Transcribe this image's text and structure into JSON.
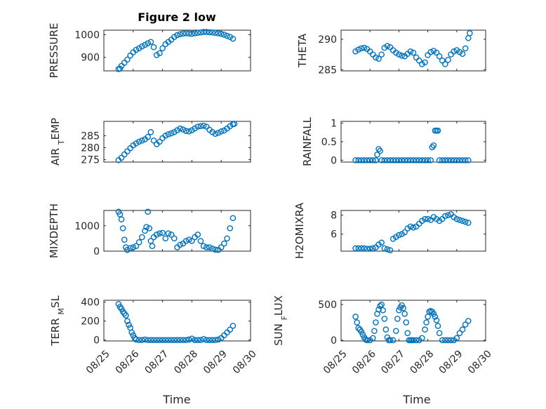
{
  "figure": {
    "title": "Figure 2 low",
    "marker_color": "#0072BD",
    "grid": true,
    "x_time_label": "Time",
    "x_ticks": [
      "08/25",
      "08/26",
      "08/27",
      "08/28",
      "08/29",
      "08/30"
    ]
  },
  "chart_data": [
    {
      "id": "pressure",
      "type": "scatter",
      "ylabel": "PRESSURE",
      "xlim": [
        25,
        30
      ],
      "ylim": [
        840,
        1020
      ],
      "yticks": [
        900,
        1000
      ],
      "x": [
        25.5,
        25.55,
        25.6,
        25.7,
        25.8,
        25.9,
        26.0,
        26.1,
        26.2,
        26.3,
        26.4,
        26.5,
        26.6,
        26.7,
        26.8,
        26.9,
        27.0,
        27.1,
        27.2,
        27.3,
        27.4,
        27.5,
        27.6,
        27.7,
        27.8,
        27.9,
        28.0,
        28.1,
        28.2,
        28.3,
        28.4,
        28.5,
        28.6,
        28.7,
        28.8,
        28.9,
        29.0,
        29.1,
        29.2,
        29.3,
        29.4
      ],
      "values": [
        848,
        850,
        862,
        876,
        890,
        908,
        922,
        933,
        940,
        948,
        955,
        962,
        968,
        945,
        910,
        918,
        940,
        958,
        968,
        978,
        990,
        998,
        1002,
        1005,
        1006,
        1005,
        1004,
        1006,
        1008,
        1010,
        1012,
        1012,
        1011,
        1010,
        1008,
        1006,
        1004,
        1000,
        995,
        990,
        982
      ]
    },
    {
      "id": "theta",
      "type": "scatter",
      "ylabel": "THETA",
      "xlim": [
        25,
        30
      ],
      "ylim": [
        284.8,
        291.5
      ],
      "yticks": [
        285,
        290
      ],
      "x": [
        25.5,
        25.6,
        25.7,
        25.8,
        25.9,
        26.0,
        26.1,
        26.2,
        26.3,
        26.4,
        26.5,
        26.6,
        26.7,
        26.8,
        26.9,
        27.0,
        27.1,
        27.2,
        27.3,
        27.4,
        27.5,
        27.6,
        27.7,
        27.8,
        27.9,
        28.0,
        28.1,
        28.2,
        28.3,
        28.4,
        28.5,
        28.6,
        28.7,
        28.8,
        28.9,
        29.0,
        29.1,
        29.2,
        29.3,
        29.4,
        29.45
      ],
      "values": [
        288.0,
        288.3,
        288.5,
        288.6,
        288.4,
        288.0,
        287.5,
        287.0,
        286.8,
        287.5,
        288.6,
        288.9,
        288.7,
        288.2,
        287.8,
        287.5,
        287.3,
        287.2,
        287.6,
        288.0,
        287.8,
        287.0,
        286.5,
        285.9,
        286.2,
        287.4,
        287.9,
        288.1,
        287.8,
        287.2,
        286.5,
        285.9,
        286.6,
        287.5,
        288.0,
        288.2,
        287.9,
        287.6,
        288.5,
        290.2,
        291.0
      ]
    },
    {
      "id": "air-temp",
      "type": "scatter",
      "ylabel": "AIR_TEMP",
      "xlim": [
        25,
        30
      ],
      "ylim": [
        274,
        291
      ],
      "yticks": [
        275,
        280,
        285
      ],
      "x": [
        25.5,
        25.6,
        25.7,
        25.8,
        25.9,
        26.0,
        26.1,
        26.2,
        26.3,
        26.4,
        26.5,
        26.6,
        26.7,
        26.8,
        26.9,
        27.0,
        27.1,
        27.2,
        27.3,
        27.4,
        27.5,
        27.6,
        27.7,
        27.8,
        27.9,
        28.0,
        28.1,
        28.2,
        28.3,
        28.4,
        28.5,
        28.6,
        28.7,
        28.8,
        28.9,
        29.0,
        29.1,
        29.2,
        29.3,
        29.4,
        29.45
      ],
      "values": [
        274.8,
        275.8,
        277.2,
        278.5,
        279.8,
        281.0,
        281.8,
        282.5,
        283.0,
        283.5,
        284.5,
        286.5,
        283.0,
        281.5,
        282.5,
        284.0,
        285.0,
        285.6,
        286.0,
        286.5,
        287.3,
        288.0,
        287.6,
        287.0,
        286.8,
        287.3,
        288.0,
        288.8,
        289.0,
        289.2,
        288.8,
        287.5,
        286.5,
        285.8,
        286.2,
        286.8,
        287.2,
        288.0,
        289.0,
        289.8,
        290.0
      ]
    },
    {
      "id": "rainfall",
      "type": "scatter",
      "ylabel": "RAINFALL",
      "xlim": [
        25,
        30
      ],
      "ylim": [
        -0.05,
        1.05
      ],
      "yticks": [
        0,
        0.5,
        1
      ],
      "x": [
        25.5,
        25.6,
        25.7,
        25.8,
        25.9,
        26.0,
        26.1,
        26.2,
        26.25,
        26.3,
        26.35,
        26.4,
        26.5,
        26.6,
        26.7,
        26.8,
        26.9,
        27.0,
        27.1,
        27.2,
        27.3,
        27.4,
        27.5,
        27.6,
        27.7,
        27.8,
        27.9,
        28.0,
        28.1,
        28.15,
        28.2,
        28.25,
        28.3,
        28.35,
        28.4,
        28.5,
        28.6,
        28.7,
        28.8,
        28.9,
        29.0,
        29.1,
        29.2,
        29.3,
        29.4
      ],
      "values": [
        0,
        0,
        0,
        0,
        0,
        0,
        0,
        0,
        0.15,
        0.3,
        0.25,
        0,
        0,
        0,
        0,
        0,
        0,
        0,
        0,
        0,
        0,
        0,
        0,
        0,
        0,
        0,
        0,
        0,
        0,
        0.35,
        0.4,
        0.8,
        0.8,
        0.8,
        0,
        0,
        0,
        0,
        0,
        0,
        0,
        0,
        0,
        0,
        0
      ]
    },
    {
      "id": "mixdepth",
      "type": "scatter",
      "ylabel": "MIXDEPTH",
      "xlim": [
        25,
        30
      ],
      "ylim": [
        0,
        1600
      ],
      "yticks": [
        0,
        1000
      ],
      "x": [
        25.5,
        25.55,
        25.6,
        25.65,
        25.7,
        25.75,
        25.8,
        25.9,
        26.0,
        26.1,
        26.2,
        26.3,
        26.4,
        26.45,
        26.5,
        26.55,
        26.6,
        26.65,
        26.7,
        26.8,
        26.9,
        27.0,
        27.1,
        27.2,
        27.3,
        27.4,
        27.5,
        27.6,
        27.7,
        27.8,
        27.9,
        28.0,
        28.1,
        28.2,
        28.3,
        28.4,
        28.5,
        28.6,
        28.7,
        28.8,
        28.9,
        29.0,
        29.1,
        29.2,
        29.3,
        29.4
      ],
      "values": [
        1550,
        1450,
        1250,
        900,
        450,
        150,
        50,
        120,
        150,
        200,
        350,
        550,
        800,
        950,
        1550,
        900,
        400,
        200,
        550,
        650,
        700,
        720,
        500,
        700,
        650,
        500,
        150,
        250,
        300,
        400,
        450,
        400,
        550,
        650,
        400,
        200,
        150,
        150,
        100,
        60,
        50,
        150,
        300,
        500,
        900,
        1300
      ]
    },
    {
      "id": "h2omixra",
      "type": "scatter",
      "ylabel": "H2OMIXRA",
      "xlim": [
        25,
        30
      ],
      "ylim": [
        4.2,
        8.5
      ],
      "yticks": [
        6,
        8
      ],
      "x": [
        25.5,
        25.6,
        25.7,
        25.8,
        25.9,
        26.0,
        26.1,
        26.2,
        26.3,
        26.4,
        26.5,
        26.6,
        26.7,
        26.8,
        26.9,
        27.0,
        27.1,
        27.2,
        27.3,
        27.4,
        27.5,
        27.6,
        27.7,
        27.8,
        27.9,
        28.0,
        28.1,
        28.2,
        28.3,
        28.4,
        28.5,
        28.6,
        28.7,
        28.8,
        28.9,
        29.0,
        29.1,
        29.2,
        29.3,
        29.4
      ],
      "values": [
        4.5,
        4.5,
        4.5,
        4.5,
        4.45,
        4.45,
        4.5,
        4.6,
        4.9,
        5.1,
        4.5,
        4.4,
        4.3,
        5.5,
        5.7,
        5.9,
        6.0,
        6.2,
        6.6,
        6.8,
        6.7,
        6.8,
        7.1,
        7.4,
        7.6,
        7.6,
        7.5,
        7.8,
        7.6,
        7.4,
        7.6,
        7.9,
        8.0,
        8.1,
        7.8,
        7.6,
        7.5,
        7.4,
        7.3,
        7.2
      ]
    },
    {
      "id": "terr-msl",
      "type": "scatter",
      "ylabel": "TERR_MSL",
      "xlim": [
        25,
        30
      ],
      "ylim": [
        -10,
        420
      ],
      "yticks": [
        0,
        200,
        400
      ],
      "x": [
        25.5,
        25.55,
        25.6,
        25.65,
        25.7,
        25.75,
        25.8,
        25.85,
        25.9,
        25.95,
        26.0,
        26.05,
        26.1,
        26.2,
        26.3,
        26.4,
        26.5,
        26.6,
        26.7,
        26.8,
        26.9,
        27.0,
        27.1,
        27.2,
        27.3,
        27.4,
        27.5,
        27.6,
        27.7,
        27.8,
        27.9,
        28.0,
        28.1,
        28.2,
        28.3,
        28.4,
        28.5,
        28.6,
        28.7,
        28.8,
        28.9,
        29.0,
        29.1,
        29.2,
        29.3,
        29.4
      ],
      "values": [
        380,
        350,
        330,
        300,
        280,
        260,
        200,
        160,
        130,
        80,
        50,
        20,
        5,
        0,
        0,
        5,
        0,
        0,
        0,
        0,
        0,
        0,
        0,
        0,
        0,
        0,
        0,
        0,
        0,
        0,
        5,
        15,
        0,
        0,
        0,
        10,
        0,
        0,
        0,
        0,
        5,
        20,
        50,
        80,
        110,
        150
      ]
    },
    {
      "id": "sun-flux",
      "type": "scatter",
      "ylabel": "SUN_FLUX",
      "xlim": [
        25,
        30
      ],
      "ylim": [
        -10,
        560
      ],
      "yticks": [
        0,
        500
      ],
      "x": [
        25.5,
        25.55,
        25.6,
        25.65,
        25.7,
        25.75,
        25.8,
        25.85,
        25.9,
        26.0,
        26.1,
        26.15,
        26.2,
        26.25,
        26.3,
        26.35,
        26.4,
        26.45,
        26.5,
        26.55,
        26.6,
        26.65,
        26.7,
        26.8,
        26.9,
        26.95,
        27.0,
        27.05,
        27.1,
        27.15,
        27.2,
        27.25,
        27.3,
        27.35,
        27.4,
        27.45,
        27.5,
        27.6,
        27.7,
        27.8,
        27.9,
        27.95,
        28.0,
        28.05,
        28.1,
        28.15,
        28.2,
        28.25,
        28.3,
        28.35,
        28.4,
        28.5,
        28.6,
        28.7,
        28.8,
        28.9,
        29.0,
        29.1,
        29.2,
        29.3,
        29.4
      ],
      "values": [
        330,
        250,
        170,
        150,
        120,
        80,
        40,
        10,
        0,
        0,
        30,
        130,
        250,
        370,
        430,
        480,
        500,
        420,
        300,
        150,
        40,
        0,
        0,
        0,
        130,
        300,
        420,
        460,
        490,
        450,
        370,
        250,
        100,
        0,
        0,
        0,
        0,
        0,
        0,
        30,
        150,
        250,
        330,
        400,
        410,
        400,
        370,
        330,
        280,
        200,
        100,
        0,
        0,
        0,
        0,
        0,
        30,
        100,
        150,
        220,
        270
      ]
    }
  ]
}
